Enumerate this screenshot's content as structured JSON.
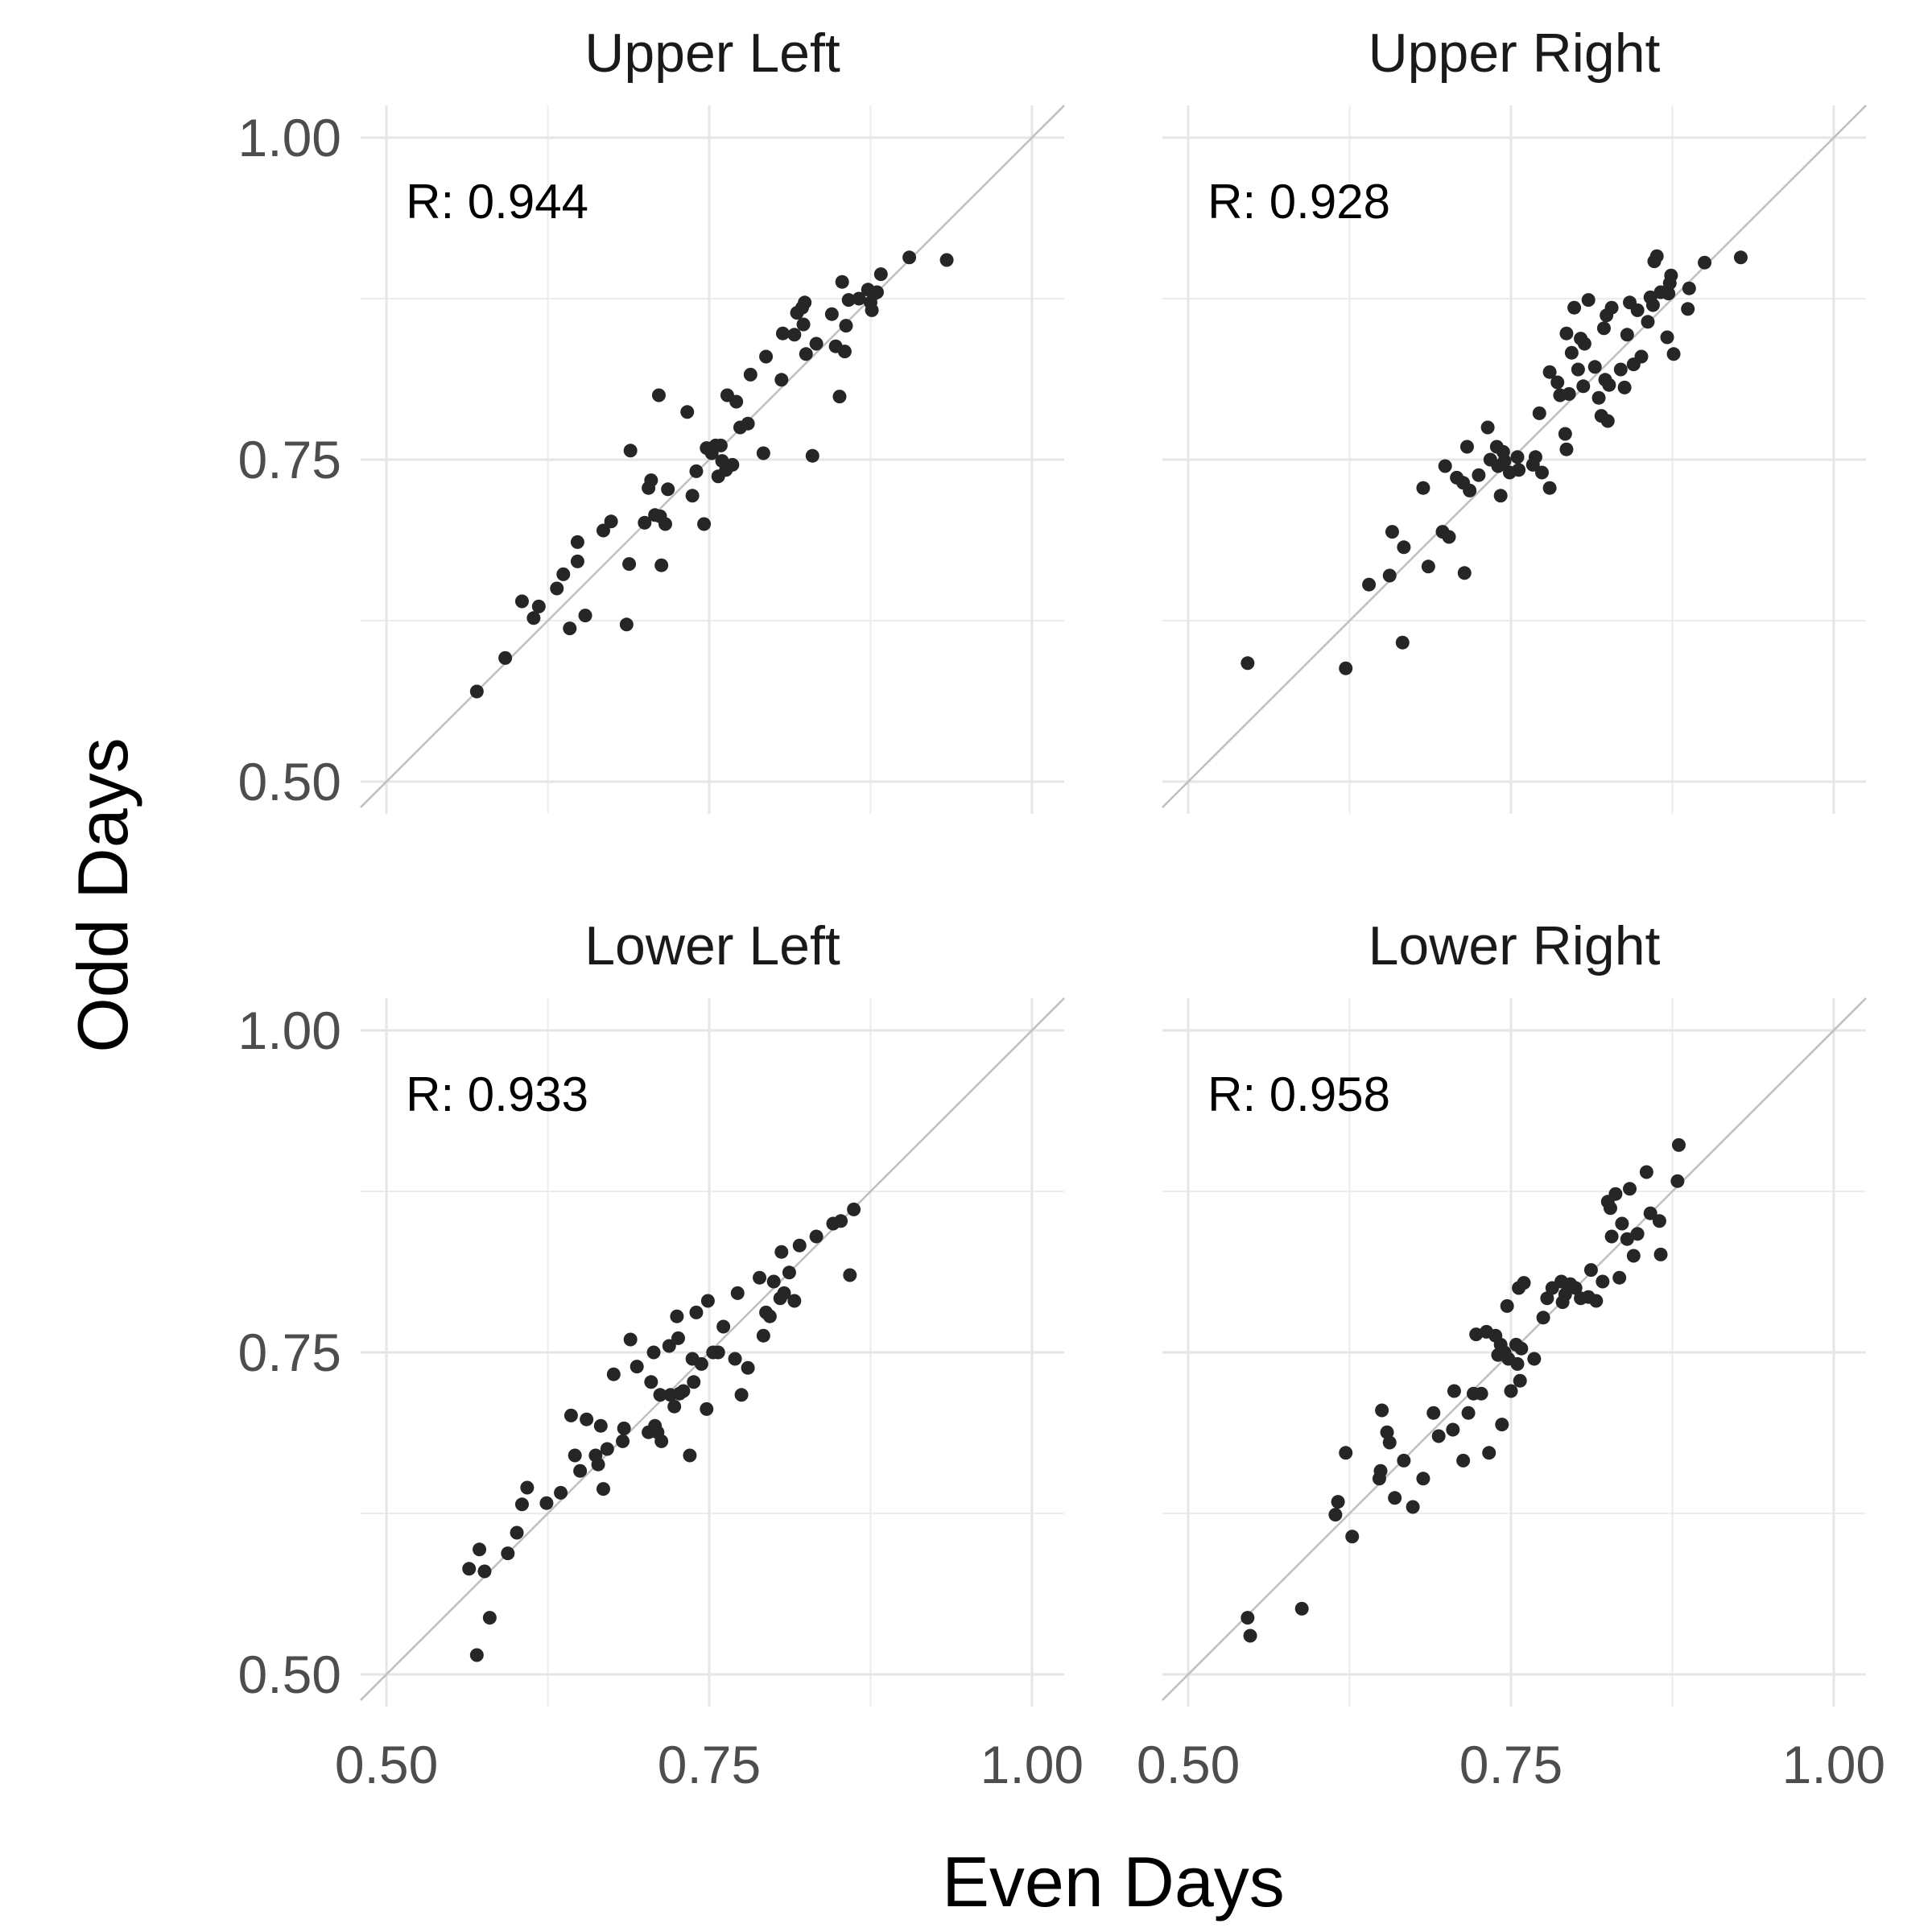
{
  "chart_data": {
    "type": "scatter",
    "xlabel": "Even Days",
    "ylabel": "Odd Days",
    "xlim": [
      0.48,
      1.025
    ],
    "ylim": [
      0.475,
      1.025
    ],
    "x_ticks": [
      "0.50",
      "0.75",
      "1.00"
    ],
    "y_ticks": [
      "0.50",
      "0.75",
      "1.00"
    ],
    "grid": true,
    "reference_line": "y = x",
    "panels": [
      {
        "title": "Upper Left",
        "annotation": "R: 0.944",
        "points": [
          [
            0.57,
            0.57
          ],
          [
            0.592,
            0.596
          ],
          [
            0.605,
            0.64
          ],
          [
            0.614,
            0.627
          ],
          [
            0.618,
            0.636
          ],
          [
            0.632,
            0.65
          ],
          [
            0.637,
            0.661
          ],
          [
            0.642,
            0.619
          ],
          [
            0.648,
            0.671
          ],
          [
            0.648,
            0.686
          ],
          [
            0.654,
            0.629
          ],
          [
            0.668,
            0.695
          ],
          [
            0.674,
            0.702
          ],
          [
            0.686,
            0.622
          ],
          [
            0.688,
            0.669
          ],
          [
            0.689,
            0.757
          ],
          [
            0.7,
            0.701
          ],
          [
            0.703,
            0.728
          ],
          [
            0.705,
            0.734
          ],
          [
            0.708,
            0.707
          ],
          [
            0.711,
            0.8
          ],
          [
            0.712,
            0.706
          ],
          [
            0.713,
            0.668
          ],
          [
            0.716,
            0.7
          ],
          [
            0.718,
            0.727
          ],
          [
            0.733,
            0.787
          ],
          [
            0.737,
            0.722
          ],
          [
            0.74,
            0.741
          ],
          [
            0.746,
            0.7
          ],
          [
            0.748,
            0.759
          ],
          [
            0.752,
            0.755
          ],
          [
            0.755,
            0.761
          ],
          [
            0.757,
            0.737
          ],
          [
            0.759,
            0.761
          ],
          [
            0.76,
            0.749
          ],
          [
            0.763,
            0.742
          ],
          [
            0.764,
            0.8
          ],
          [
            0.768,
            0.746
          ],
          [
            0.771,
            0.795
          ],
          [
            0.774,
            0.775
          ],
          [
            0.78,
            0.778
          ],
          [
            0.782,
            0.816
          ],
          [
            0.792,
            0.755
          ],
          [
            0.794,
            0.83
          ],
          [
            0.806,
            0.812
          ],
          [
            0.807,
            0.848
          ],
          [
            0.816,
            0.847
          ],
          [
            0.818,
            0.864
          ],
          [
            0.822,
            0.868
          ],
          [
            0.823,
            0.855
          ],
          [
            0.824,
            0.872
          ],
          [
            0.825,
            0.832
          ],
          [
            0.83,
            0.753
          ],
          [
            0.833,
            0.84
          ],
          [
            0.845,
            0.863
          ],
          [
            0.848,
            0.838
          ],
          [
            0.851,
            0.799
          ],
          [
            0.853,
            0.888
          ],
          [
            0.855,
            0.834
          ],
          [
            0.856,
            0.854
          ],
          [
            0.858,
            0.874
          ],
          [
            0.866,
            0.875
          ],
          [
            0.873,
            0.882
          ],
          [
            0.875,
            0.872
          ],
          [
            0.876,
            0.866
          ],
          [
            0.878,
            0.879
          ],
          [
            0.88,
            0.88
          ],
          [
            0.883,
            0.894
          ],
          [
            0.905,
            0.907
          ],
          [
            0.934,
            0.905
          ]
        ]
      },
      {
        "title": "Upper Right",
        "annotation": "R: 0.928",
        "points": [
          [
            0.546,
            0.592
          ],
          [
            0.622,
            0.588
          ],
          [
            0.64,
            0.653
          ],
          [
            0.656,
            0.66
          ],
          [
            0.658,
            0.694
          ],
          [
            0.666,
            0.608
          ],
          [
            0.667,
            0.682
          ],
          [
            0.682,
            0.728
          ],
          [
            0.686,
            0.667
          ],
          [
            0.697,
            0.694
          ],
          [
            0.699,
            0.745
          ],
          [
            0.702,
            0.69
          ],
          [
            0.708,
            0.736
          ],
          [
            0.713,
            0.732
          ],
          [
            0.714,
            0.662
          ],
          [
            0.716,
            0.76
          ],
          [
            0.718,
            0.726
          ],
          [
            0.725,
            0.738
          ],
          [
            0.732,
            0.775
          ],
          [
            0.734,
            0.75
          ],
          [
            0.739,
            0.76
          ],
          [
            0.74,
            0.745
          ],
          [
            0.742,
            0.722
          ],
          [
            0.744,
            0.756
          ],
          [
            0.745,
            0.749
          ],
          [
            0.749,
            0.74
          ],
          [
            0.755,
            0.752
          ],
          [
            0.756,
            0.742
          ],
          [
            0.767,
            0.746
          ],
          [
            0.769,
            0.752
          ],
          [
            0.772,
            0.786
          ],
          [
            0.774,
            0.74
          ],
          [
            0.78,
            0.728
          ],
          [
            0.78,
            0.818
          ],
          [
            0.786,
            0.81
          ],
          [
            0.788,
            0.8
          ],
          [
            0.792,
            0.77
          ],
          [
            0.793,
            0.848
          ],
          [
            0.793,
            0.758
          ],
          [
            0.795,
            0.801
          ],
          [
            0.797,
            0.833
          ],
          [
            0.799,
            0.868
          ],
          [
            0.802,
            0.82
          ],
          [
            0.804,
            0.844
          ],
          [
            0.806,
            0.807
          ],
          [
            0.807,
            0.84
          ],
          [
            0.81,
            0.874
          ],
          [
            0.815,
            0.822
          ],
          [
            0.818,
            0.798
          ],
          [
            0.82,
            0.784
          ],
          [
            0.822,
            0.852
          ],
          [
            0.823,
            0.812
          ],
          [
            0.824,
            0.862
          ],
          [
            0.825,
            0.78
          ],
          [
            0.826,
            0.808
          ],
          [
            0.828,
            0.868
          ],
          [
            0.835,
            0.82
          ],
          [
            0.838,
            0.806
          ],
          [
            0.84,
            0.847
          ],
          [
            0.842,
            0.872
          ],
          [
            0.845,
            0.824
          ],
          [
            0.848,
            0.866
          ],
          [
            0.851,
            0.83
          ],
          [
            0.856,
            0.857
          ],
          [
            0.858,
            0.876
          ],
          [
            0.86,
            0.87
          ],
          [
            0.861,
            0.904
          ],
          [
            0.863,
            0.908
          ],
          [
            0.866,
            0.88
          ],
          [
            0.871,
            0.845
          ],
          [
            0.872,
            0.879
          ],
          [
            0.873,
            0.887
          ],
          [
            0.874,
            0.893
          ],
          [
            0.876,
            0.832
          ],
          [
            0.887,
            0.867
          ],
          [
            0.888,
            0.883
          ],
          [
            0.9,
            0.903
          ],
          [
            0.928,
            0.907
          ]
        ]
      },
      {
        "title": "Lower Left",
        "annotation": "R: 0.933",
        "points": [
          [
            0.564,
            0.582
          ],
          [
            0.57,
            0.515
          ],
          [
            0.572,
            0.597
          ],
          [
            0.576,
            0.58
          ],
          [
            0.58,
            0.544
          ],
          [
            0.594,
            0.594
          ],
          [
            0.601,
            0.61
          ],
          [
            0.605,
            0.632
          ],
          [
            0.609,
            0.645
          ],
          [
            0.624,
            0.633
          ],
          [
            0.635,
            0.641
          ],
          [
            0.643,
            0.701
          ],
          [
            0.646,
            0.67
          ],
          [
            0.65,
            0.658
          ],
          [
            0.655,
            0.698
          ],
          [
            0.662,
            0.67
          ],
          [
            0.664,
            0.663
          ],
          [
            0.666,
            0.693
          ],
          [
            0.668,
            0.644
          ],
          [
            0.671,
            0.675
          ],
          [
            0.676,
            0.733
          ],
          [
            0.683,
            0.681
          ],
          [
            0.684,
            0.691
          ],
          [
            0.689,
            0.76
          ],
          [
            0.694,
            0.739
          ],
          [
            0.703,
            0.688
          ],
          [
            0.705,
            0.727
          ],
          [
            0.707,
            0.75
          ],
          [
            0.708,
            0.693
          ],
          [
            0.71,
            0.688
          ],
          [
            0.712,
            0.717
          ],
          [
            0.713,
            0.681
          ],
          [
            0.719,
            0.755
          ],
          [
            0.72,
            0.717
          ],
          [
            0.723,
            0.708
          ],
          [
            0.725,
            0.778
          ],
          [
            0.726,
            0.761
          ],
          [
            0.727,
            0.718
          ],
          [
            0.73,
            0.72
          ],
          [
            0.735,
            0.67
          ],
          [
            0.737,
            0.745
          ],
          [
            0.738,
            0.727
          ],
          [
            0.74,
            0.781
          ],
          [
            0.744,
            0.741
          ],
          [
            0.748,
            0.706
          ],
          [
            0.749,
            0.79
          ],
          [
            0.753,
            0.75
          ],
          [
            0.757,
            0.75
          ],
          [
            0.761,
            0.77
          ],
          [
            0.77,
            0.745
          ],
          [
            0.772,
            0.796
          ],
          [
            0.775,
            0.717
          ],
          [
            0.78,
            0.738
          ],
          [
            0.789,
            0.808
          ],
          [
            0.792,
            0.763
          ],
          [
            0.794,
            0.781
          ],
          [
            0.797,
            0.778
          ],
          [
            0.8,
            0.805
          ],
          [
            0.805,
            0.792
          ],
          [
            0.806,
            0.828
          ],
          [
            0.808,
            0.796
          ],
          [
            0.812,
            0.812
          ],
          [
            0.816,
            0.79
          ],
          [
            0.82,
            0.833
          ],
          [
            0.833,
            0.84
          ],
          [
            0.846,
            0.85
          ],
          [
            0.852,
            0.852
          ],
          [
            0.859,
            0.81
          ],
          [
            0.862,
            0.861
          ]
        ]
      },
      {
        "title": "Lower Right",
        "annotation": "R: 0.958",
        "points": [
          [
            0.546,
            0.544
          ],
          [
            0.548,
            0.53
          ],
          [
            0.588,
            0.551
          ],
          [
            0.614,
            0.624
          ],
          [
            0.616,
            0.634
          ],
          [
            0.622,
            0.672
          ],
          [
            0.627,
            0.607
          ],
          [
            0.648,
            0.652
          ],
          [
            0.649,
            0.658
          ],
          [
            0.65,
            0.705
          ],
          [
            0.654,
            0.688
          ],
          [
            0.656,
            0.68
          ],
          [
            0.66,
            0.637
          ],
          [
            0.667,
            0.666
          ],
          [
            0.674,
            0.63
          ],
          [
            0.682,
            0.652
          ],
          [
            0.69,
            0.703
          ],
          [
            0.694,
            0.685
          ],
          [
            0.705,
            0.69
          ],
          [
            0.706,
            0.72
          ],
          [
            0.713,
            0.666
          ],
          [
            0.717,
            0.703
          ],
          [
            0.721,
            0.718
          ],
          [
            0.723,
            0.764
          ],
          [
            0.727,
            0.718
          ],
          [
            0.731,
            0.766
          ],
          [
            0.733,
            0.672
          ],
          [
            0.738,
            0.763
          ],
          [
            0.74,
            0.748
          ],
          [
            0.742,
            0.756
          ],
          [
            0.743,
            0.694
          ],
          [
            0.745,
            0.75
          ],
          [
            0.747,
            0.786
          ],
          [
            0.748,
            0.745
          ],
          [
            0.75,
            0.72
          ],
          [
            0.754,
            0.756
          ],
          [
            0.755,
            0.741
          ],
          [
            0.756,
            0.8
          ],
          [
            0.757,
            0.728
          ],
          [
            0.758,
            0.753
          ],
          [
            0.76,
            0.804
          ],
          [
            0.768,
            0.745
          ],
          [
            0.775,
            0.777
          ],
          [
            0.778,
            0.792
          ],
          [
            0.782,
            0.8
          ],
          [
            0.789,
            0.805
          ],
          [
            0.79,
            0.789
          ],
          [
            0.792,
            0.795
          ],
          [
            0.796,
            0.803
          ],
          [
            0.8,
            0.8
          ],
          [
            0.804,
            0.792
          ],
          [
            0.81,
            0.793
          ],
          [
            0.812,
            0.814
          ],
          [
            0.816,
            0.79
          ],
          [
            0.821,
            0.805
          ],
          [
            0.825,
            0.867
          ],
          [
            0.827,
            0.862
          ],
          [
            0.828,
            0.84
          ],
          [
            0.831,
            0.873
          ],
          [
            0.834,
            0.808
          ],
          [
            0.836,
            0.85
          ],
          [
            0.84,
            0.838
          ],
          [
            0.842,
            0.877
          ],
          [
            0.845,
            0.825
          ],
          [
            0.848,
            0.842
          ],
          [
            0.855,
            0.89
          ],
          [
            0.858,
            0.858
          ],
          [
            0.865,
            0.852
          ],
          [
            0.866,
            0.826
          ],
          [
            0.879,
            0.883
          ],
          [
            0.88,
            0.911
          ]
        ]
      }
    ]
  }
}
